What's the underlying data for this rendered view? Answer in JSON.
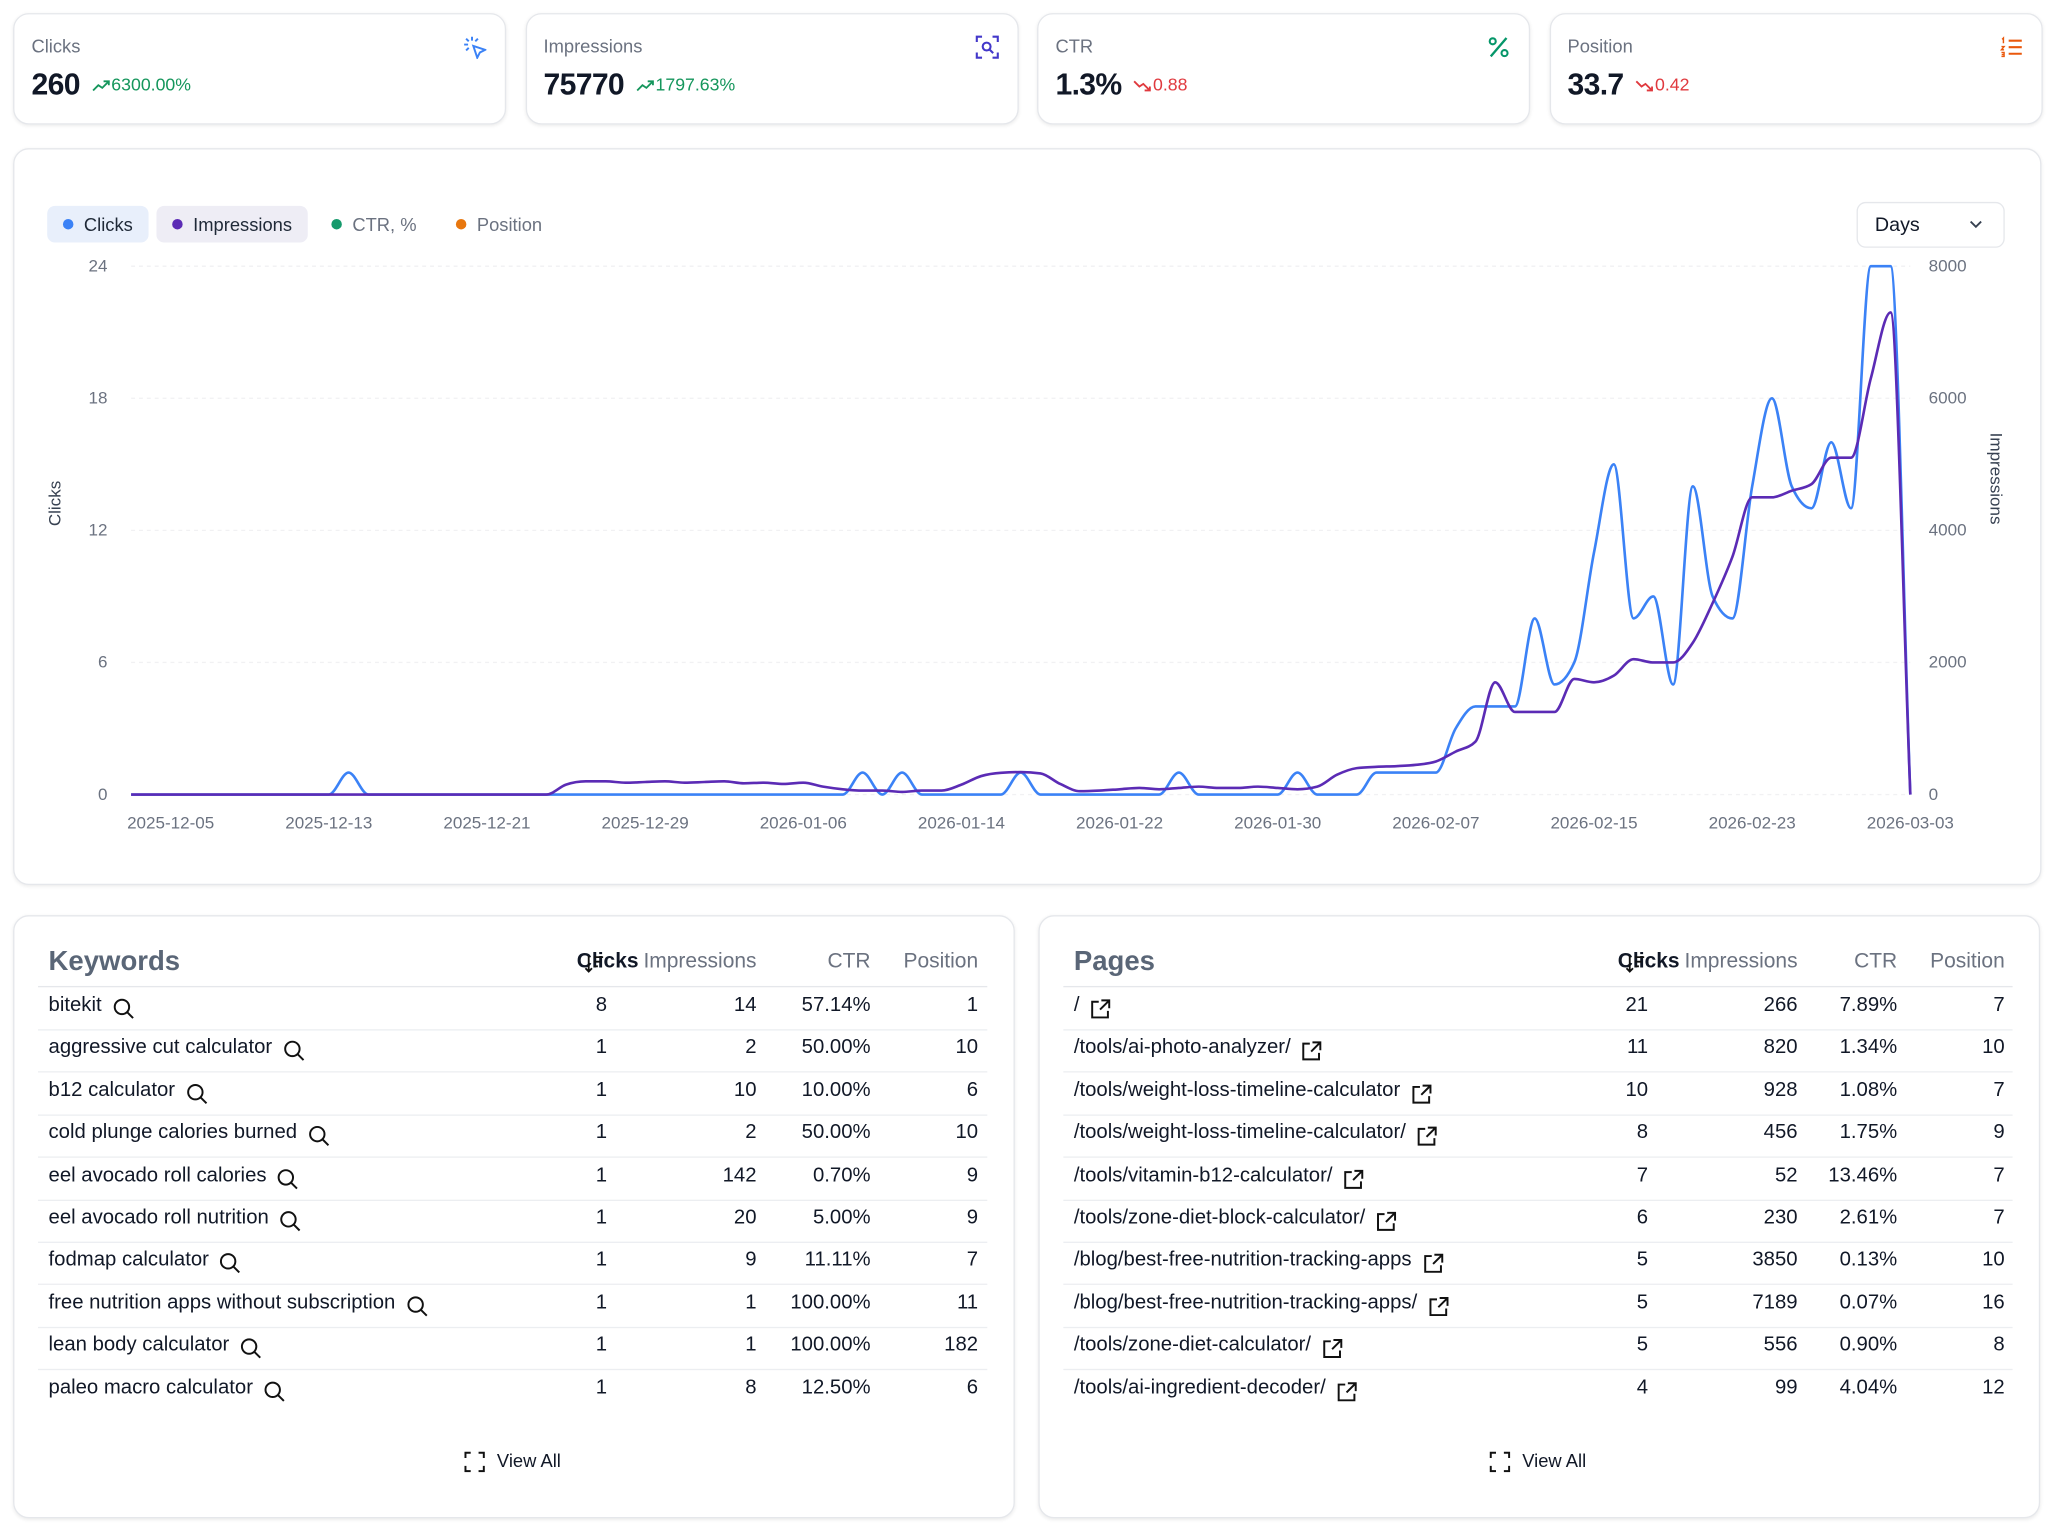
{
  "cards": [
    {
      "label": "Clicks",
      "value": "260",
      "change": "6300.00%",
      "trend": "up",
      "color": "#3b82f6"
    },
    {
      "label": "Impressions",
      "value": "75770",
      "change": "1797.63%",
      "trend": "up",
      "color": "#4338ca"
    },
    {
      "label": "CTR",
      "value": "1.3%",
      "change": "0.88",
      "trend": "down",
      "color": "#059669"
    },
    {
      "label": "Position",
      "value": "33.7",
      "change": "0.42",
      "trend": "down",
      "color": "#ea580c"
    }
  ],
  "range_select": "Days",
  "chart_data": {
    "type": "line",
    "ylabel": "Clicks",
    "y2label": "Impressions",
    "x": [
      "2025-12-03",
      "2025-12-04",
      "2025-12-05",
      "2025-12-06",
      "2025-12-07",
      "2025-12-08",
      "2025-12-09",
      "2025-12-10",
      "2025-12-11",
      "2025-12-12",
      "2025-12-13",
      "2025-12-14",
      "2025-12-15",
      "2025-12-16",
      "2025-12-17",
      "2025-12-18",
      "2025-12-19",
      "2025-12-20",
      "2025-12-21",
      "2025-12-22",
      "2025-12-23",
      "2025-12-24",
      "2025-12-25",
      "2025-12-26",
      "2025-12-27",
      "2025-12-28",
      "2025-12-29",
      "2025-12-30",
      "2025-12-31",
      "2026-01-01",
      "2026-01-02",
      "2026-01-03",
      "2026-01-04",
      "2026-01-05",
      "2026-01-06",
      "2026-01-07",
      "2026-01-08",
      "2026-01-09",
      "2026-01-10",
      "2026-01-11",
      "2026-01-12",
      "2026-01-13",
      "2026-01-14",
      "2026-01-15",
      "2026-01-16",
      "2026-01-17",
      "2026-01-18",
      "2026-01-19",
      "2026-01-20",
      "2026-01-21",
      "2026-01-22",
      "2026-01-23",
      "2026-01-24",
      "2026-01-25",
      "2026-01-26",
      "2026-01-27",
      "2026-01-28",
      "2026-01-29",
      "2026-01-30",
      "2026-01-31",
      "2026-02-01",
      "2026-02-02",
      "2026-02-03",
      "2026-02-04",
      "2026-02-05",
      "2026-02-06",
      "2026-02-07",
      "2026-02-08",
      "2026-02-09",
      "2026-02-10",
      "2026-02-11",
      "2026-02-12",
      "2026-02-13",
      "2026-02-14",
      "2026-02-15",
      "2026-02-16",
      "2026-02-17",
      "2026-02-18",
      "2026-02-19",
      "2026-02-20",
      "2026-02-21",
      "2026-02-22",
      "2026-02-23",
      "2026-02-24",
      "2026-02-25",
      "2026-02-26",
      "2026-02-27",
      "2026-02-28",
      "2026-03-01",
      "2026-03-02",
      "2026-03-03"
    ],
    "xticks": [
      "2025-12-05",
      "2025-12-13",
      "2025-12-21",
      "2025-12-29",
      "2026-01-06",
      "2026-01-14",
      "2026-01-22",
      "2026-01-30",
      "2026-02-07",
      "2026-02-15",
      "2026-02-23",
      "2026-03-03"
    ],
    "ylim": [
      0,
      24
    ],
    "yticks": [
      0,
      6,
      12,
      18,
      24
    ],
    "y2lim": [
      0,
      8000
    ],
    "y2ticks": [
      0,
      2000,
      4000,
      6000,
      8000
    ],
    "grid": true,
    "series": [
      {
        "name": "Clicks",
        "color": "#3b82f6",
        "visible": true,
        "values": [
          0,
          0,
          0,
          0,
          0,
          0,
          0,
          0,
          0,
          0,
          0,
          1,
          0,
          0,
          0,
          0,
          0,
          0,
          0,
          0,
          0,
          0,
          0,
          0,
          0,
          0,
          0,
          0,
          0,
          0,
          0,
          0,
          0,
          0,
          0,
          0,
          0,
          1,
          0,
          1,
          0,
          0,
          0,
          0,
          0,
          1,
          0,
          0,
          0,
          0,
          0,
          0,
          0,
          1,
          0,
          0,
          0,
          0,
          0,
          1,
          0,
          0,
          0,
          1,
          1,
          1,
          1,
          3,
          4,
          4,
          4,
          8,
          5,
          6,
          11,
          15,
          8,
          9,
          5,
          14,
          9,
          8,
          14,
          18,
          14,
          13,
          16,
          13,
          24,
          24,
          0
        ]
      },
      {
        "name": "Impressions",
        "color": "#5b2bb5",
        "visible": true,
        "axis": "y2",
        "values": [
          0,
          0,
          0,
          0,
          0,
          0,
          0,
          0,
          0,
          0,
          0,
          0,
          0,
          0,
          0,
          0,
          0,
          0,
          0,
          0,
          0,
          0,
          150,
          200,
          200,
          180,
          190,
          200,
          180,
          190,
          200,
          170,
          180,
          160,
          180,
          120,
          80,
          60,
          60,
          40,
          60,
          60,
          150,
          280,
          330,
          340,
          320,
          160,
          50,
          60,
          80,
          100,
          80,
          100,
          120,
          100,
          100,
          120,
          100,
          80,
          120,
          300,
          400,
          420,
          430,
          450,
          500,
          650,
          800,
          1700,
          1250,
          1250,
          1250,
          1750,
          1700,
          1800,
          2050,
          2000,
          2000,
          2300,
          2900,
          3600,
          4500,
          4500,
          4600,
          4700,
          5100,
          5100,
          6300,
          7300,
          0
        ]
      },
      {
        "name": "CTR, %",
        "color": "#159a6c",
        "visible": false
      },
      {
        "name": "Position",
        "color": "#e8770e",
        "visible": false
      }
    ]
  },
  "keywords": {
    "title": "Keywords",
    "columns": [
      "Clicks",
      "Impressions",
      "CTR",
      "Position"
    ],
    "rows": [
      {
        "name": "bitekit",
        "values": [
          8,
          14,
          "57.14%",
          1
        ]
      },
      {
        "name": "aggressive cut calculator",
        "values": [
          1,
          2,
          "50.00%",
          10
        ]
      },
      {
        "name": "b12 calculator",
        "values": [
          1,
          10,
          "10.00%",
          6
        ]
      },
      {
        "name": "cold plunge calories burned",
        "values": [
          1,
          2,
          "50.00%",
          10
        ]
      },
      {
        "name": "eel avocado roll calories",
        "values": [
          1,
          142,
          "0.70%",
          9
        ]
      },
      {
        "name": "eel avocado roll nutrition",
        "values": [
          1,
          20,
          "5.00%",
          9
        ]
      },
      {
        "name": "fodmap calculator",
        "values": [
          1,
          9,
          "11.11%",
          7
        ]
      },
      {
        "name": "free nutrition apps without subscription",
        "values": [
          1,
          1,
          "100.00%",
          11
        ]
      },
      {
        "name": "lean body calculator",
        "values": [
          1,
          1,
          "100.00%",
          182
        ]
      },
      {
        "name": "paleo macro calculator",
        "values": [
          1,
          8,
          "12.50%",
          6
        ]
      }
    ],
    "view_all": "View All"
  },
  "pages": {
    "title": "Pages",
    "columns": [
      "Clicks",
      "Impressions",
      "CTR",
      "Position"
    ],
    "rows": [
      {
        "name": "/",
        "values": [
          21,
          266,
          "7.89%",
          7
        ]
      },
      {
        "name": "/tools/ai-photo-analyzer/",
        "values": [
          11,
          820,
          "1.34%",
          10
        ]
      },
      {
        "name": "/tools/weight-loss-timeline-calculator",
        "values": [
          10,
          928,
          "1.08%",
          7
        ]
      },
      {
        "name": "/tools/weight-loss-timeline-calculator/",
        "values": [
          8,
          456,
          "1.75%",
          9
        ]
      },
      {
        "name": "/tools/vitamin-b12-calculator/",
        "values": [
          7,
          52,
          "13.46%",
          7
        ]
      },
      {
        "name": "/tools/zone-diet-block-calculator/",
        "values": [
          6,
          230,
          "2.61%",
          7
        ]
      },
      {
        "name": "/blog/best-free-nutrition-tracking-apps",
        "values": [
          5,
          3850,
          "0.13%",
          10
        ]
      },
      {
        "name": "/blog/best-free-nutrition-tracking-apps/",
        "values": [
          5,
          7189,
          "0.07%",
          16
        ]
      },
      {
        "name": "/tools/zone-diet-calculator/",
        "values": [
          5,
          556,
          "0.90%",
          8
        ]
      },
      {
        "name": "/tools/ai-ingredient-decoder/",
        "values": [
          4,
          99,
          "4.04%",
          12
        ]
      }
    ],
    "view_all": "View All"
  }
}
